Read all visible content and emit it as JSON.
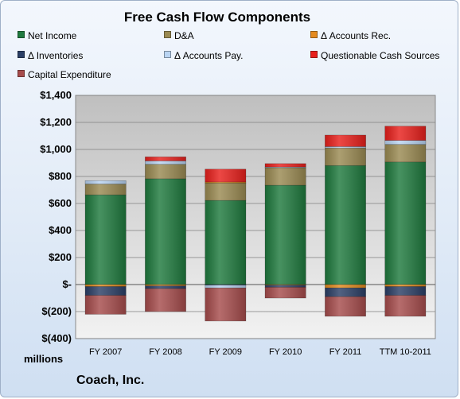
{
  "chart_data": {
    "type": "bar",
    "stacked": true,
    "title": "Free Cash Flow Components",
    "unit_label": "millions",
    "company": "Coach, Inc.",
    "categories": [
      "FY 2007",
      "FY 2008",
      "FY 2009",
      "FY 2010",
      "FY 2011",
      "TTM 10-2011"
    ],
    "ylim": [
      -400,
      1400
    ],
    "yticks": [
      1400,
      1200,
      1000,
      800,
      600,
      400,
      200,
      0,
      -200,
      -400
    ],
    "ytick_labels": [
      "$1,400",
      "$1,200",
      "$1,000",
      "$800",
      "$600",
      "$400",
      "$200",
      "$-",
      "$(200)",
      "$(400)"
    ],
    "grid": true,
    "legend_position": "top",
    "series": [
      {
        "name": "Net Income",
        "color": "#1f7a3e",
        "values": [
          664,
          783,
          623,
          735,
          881,
          907
        ]
      },
      {
        "name": "D&A",
        "color": "#9a8a52",
        "values": [
          80,
          107,
          128,
          130,
          130,
          130
        ]
      },
      {
        "name": "Δ Accounts Rec.",
        "color": "#e48a1e",
        "values": [
          -15,
          -10,
          8,
          -5,
          -25,
          -15
        ]
      },
      {
        "name": "Δ Inventories",
        "color": "#2b3f66",
        "values": [
          -65,
          -20,
          -5,
          -15,
          -65,
          -65
        ]
      },
      {
        "name": "Δ Accounts Pay.",
        "color": "#b9d4f2",
        "values": [
          25,
          25,
          -20,
          5,
          10,
          30
        ]
      },
      {
        "name": "Questionable Cash Sources",
        "color": "#e8201c",
        "values": [
          0,
          30,
          95,
          25,
          85,
          105
        ]
      },
      {
        "name": "Capital Expenditure",
        "color": "#a64c4c",
        "values": [
          -140,
          -170,
          -245,
          -80,
          -145,
          -155
        ]
      }
    ]
  }
}
